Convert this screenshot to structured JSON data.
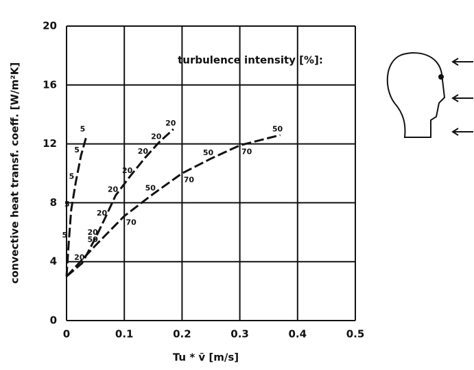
{
  "chart_data": {
    "type": "line",
    "annotation": "turbulence intensity [%]:",
    "x_label": "Tu * v̄  [m/s]",
    "y_label": "convective heat transf. coeff.  [W/m²K]",
    "xlim": [
      0,
      0.5
    ],
    "xticks": [
      0,
      0.1,
      0.2,
      0.3,
      0.4,
      0.5
    ],
    "ylim": [
      0,
      20
    ],
    "yticks": [
      0,
      4,
      8,
      12,
      16,
      20
    ],
    "grid": true,
    "series": [
      {
        "name": "5",
        "color": "#111111",
        "x": [
          0,
          0.004,
          0.008,
          0.016,
          0.025,
          0.035
        ],
        "values": [
          3,
          5.4,
          7.5,
          9.4,
          11.2,
          12.6
        ]
      },
      {
        "name": "20",
        "color": "#111111",
        "x": [
          0,
          0.027,
          0.05,
          0.066,
          0.085,
          0.11,
          0.137,
          0.16,
          0.185
        ],
        "values": [
          3,
          3.9,
          5.6,
          6.9,
          8.5,
          9.8,
          11.1,
          12.1,
          13
        ]
      },
      {
        "name": "50",
        "color": "#111111",
        "x": [
          0,
          0.05,
          0.1,
          0.15,
          0.2,
          0.25,
          0.3,
          0.37
        ],
        "values": [
          3,
          5.1,
          7.1,
          8.6,
          10,
          11,
          11.9,
          12.6
        ]
      },
      {
        "name": "70",
        "color": "#111111",
        "x": [
          0,
          0.05,
          0.1,
          0.15,
          0.2,
          0.25,
          0.3,
          0.37
        ],
        "values": [
          3,
          5.1,
          7.1,
          8.6,
          10,
          11,
          11.9,
          12.6
        ]
      }
    ]
  }
}
